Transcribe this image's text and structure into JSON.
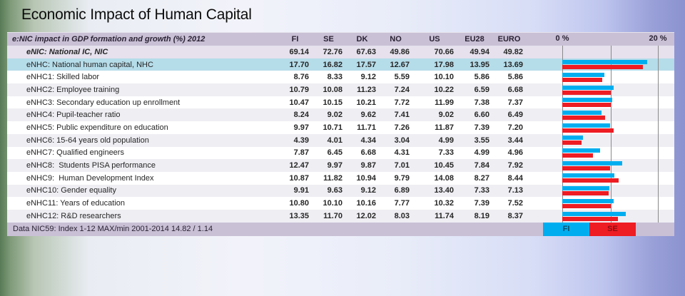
{
  "title": "Economic Impact of Human Capital",
  "table": {
    "header": {
      "label": "e:NIC impact in GDP formation and growth (%) 2012",
      "columns": [
        "FI",
        "SE",
        "DK",
        "NO",
        "US",
        "EU28",
        "EURO"
      ],
      "axis_left_label": "0 %",
      "axis_right_label": "20 %"
    },
    "rows": [
      {
        "id": "enic",
        "label": "eNIC: National IC, NIC",
        "values": [
          "69.14",
          "72.76",
          "67.63",
          "49.86",
          "70.66",
          "49.94",
          "49.82"
        ]
      },
      {
        "id": "enhc",
        "label": "eNHC: National human capital, NHC",
        "values": [
          "17.70",
          "16.82",
          "17.57",
          "12.67",
          "17.98",
          "13.95",
          "13.69"
        ]
      },
      {
        "id": "enhc1",
        "label": "eNHC1: Skilled labor",
        "values": [
          "8.76",
          "8.33",
          "9.12",
          "5.59",
          "10.10",
          "5.86",
          "5.86"
        ]
      },
      {
        "id": "enhc2",
        "label": "eNHC2: Employee training",
        "values": [
          "10.79",
          "10.08",
          "11.23",
          "7.24",
          "10.22",
          "6.59",
          "6.68"
        ]
      },
      {
        "id": "enhc3",
        "label": "eNHC3: Secondary education up enrollment",
        "values": [
          "10.47",
          "10.15",
          "10.21",
          "7.72",
          "11.99",
          "7.38",
          "7.37"
        ]
      },
      {
        "id": "enhc4",
        "label": "eNHC4: Pupil-teacher ratio",
        "values": [
          "8.24",
          "9.02",
          "9.62",
          "7.41",
          "9.02",
          "6.60",
          "6.49"
        ]
      },
      {
        "id": "enhc5",
        "label": "eNHC5: Public expenditure on education",
        "values": [
          "9.97",
          "10.71",
          "11.71",
          "7.26",
          "11.87",
          "7.39",
          "7.20"
        ]
      },
      {
        "id": "enhc6",
        "label": "eNHC6: 15-64 years old population",
        "values": [
          "4.39",
          "4.01",
          "4.34",
          "3.04",
          "4.99",
          "3.55",
          "3.44"
        ]
      },
      {
        "id": "enhc7",
        "label": "eNHC7: Qualified engineers",
        "values": [
          "7.87",
          "6.45",
          "6.68",
          "4.31",
          "7.33",
          "4.99",
          "4.96"
        ]
      },
      {
        "id": "enhc8",
        "label": "eNHC8:  Students PISA performance",
        "values": [
          "12.47",
          "9.97",
          "9.87",
          "7.01",
          "10.45",
          "7.84",
          "7.92"
        ]
      },
      {
        "id": "enhc9",
        "label": "eNHC9:  Human Development Index",
        "values": [
          "10.87",
          "11.82",
          "10.94",
          "9.79",
          "14.08",
          "8.27",
          "8.44"
        ]
      },
      {
        "id": "enhc10",
        "label": "eNHC10: Gender equality",
        "values": [
          "9.91",
          "9.63",
          "9.12",
          "6.89",
          "13.40",
          "7.33",
          "7.13"
        ]
      },
      {
        "id": "enhc11",
        "label": "eNHC11: Years of education",
        "values": [
          "10.80",
          "10.10",
          "10.16",
          "7.77",
          "10.32",
          "7.39",
          "7.52"
        ]
      },
      {
        "id": "enhc12",
        "label": "eNHC12: R&D researchers",
        "values": [
          "13.35",
          "11.70",
          "12.02",
          "8.03",
          "11.74",
          "8.19",
          "8.37"
        ]
      }
    ],
    "footer": {
      "label": "Data NIC59: Index 1-12 MAX/min 2001-2014 14.82 / 1.14",
      "legend": [
        {
          "label": "FI",
          "color": "#00aeef",
          "text_color": "#0b4b66"
        },
        {
          "label": "SE",
          "color": "#ee1c23",
          "text_color": "#8b0d12"
        }
      ]
    }
  },
  "chart_data": {
    "type": "bar",
    "orientation": "horizontal",
    "title": "e:NIC impact in GDP formation and growth (%) 2012",
    "xlim": [
      0,
      20
    ],
    "tick_labels": [
      "0 %",
      "20 %"
    ],
    "gridlines_at": [
      0,
      10,
      20
    ],
    "legend_position": "bottom-right",
    "categories": [
      "eNHC: National human capital, NHC",
      "eNHC1: Skilled labor",
      "eNHC2: Employee training",
      "eNHC3: Secondary education up enrollment",
      "eNHC4: Pupil-teacher ratio",
      "eNHC5: Public expenditure on education",
      "eNHC6: 15-64 years old population",
      "eNHC7: Qualified engineers",
      "eNHC8: Students PISA performance",
      "eNHC9: Human Development Index",
      "eNHC10: Gender equality",
      "eNHC11: Years of education",
      "eNHC12: R&D researchers"
    ],
    "series": [
      {
        "name": "FI",
        "color": "#00aeef",
        "values": [
          17.7,
          8.76,
          10.79,
          10.47,
          8.24,
          9.97,
          4.39,
          7.87,
          12.47,
          10.87,
          9.91,
          10.8,
          13.35
        ]
      },
      {
        "name": "SE",
        "color": "#ee1c23",
        "values": [
          16.82,
          8.33,
          10.08,
          10.15,
          9.02,
          10.71,
          4.01,
          6.45,
          9.97,
          11.82,
          9.63,
          10.1,
          11.7
        ]
      }
    ]
  },
  "colors": {
    "header_bg": "#c9c0d6",
    "enic_row_bg": "#e6e1ed",
    "highlight_row_bg": "#b5dce9",
    "stripe_row_bg": "#efeef3",
    "fi_bar": "#00aeef",
    "se_bar": "#ee1c23"
  }
}
